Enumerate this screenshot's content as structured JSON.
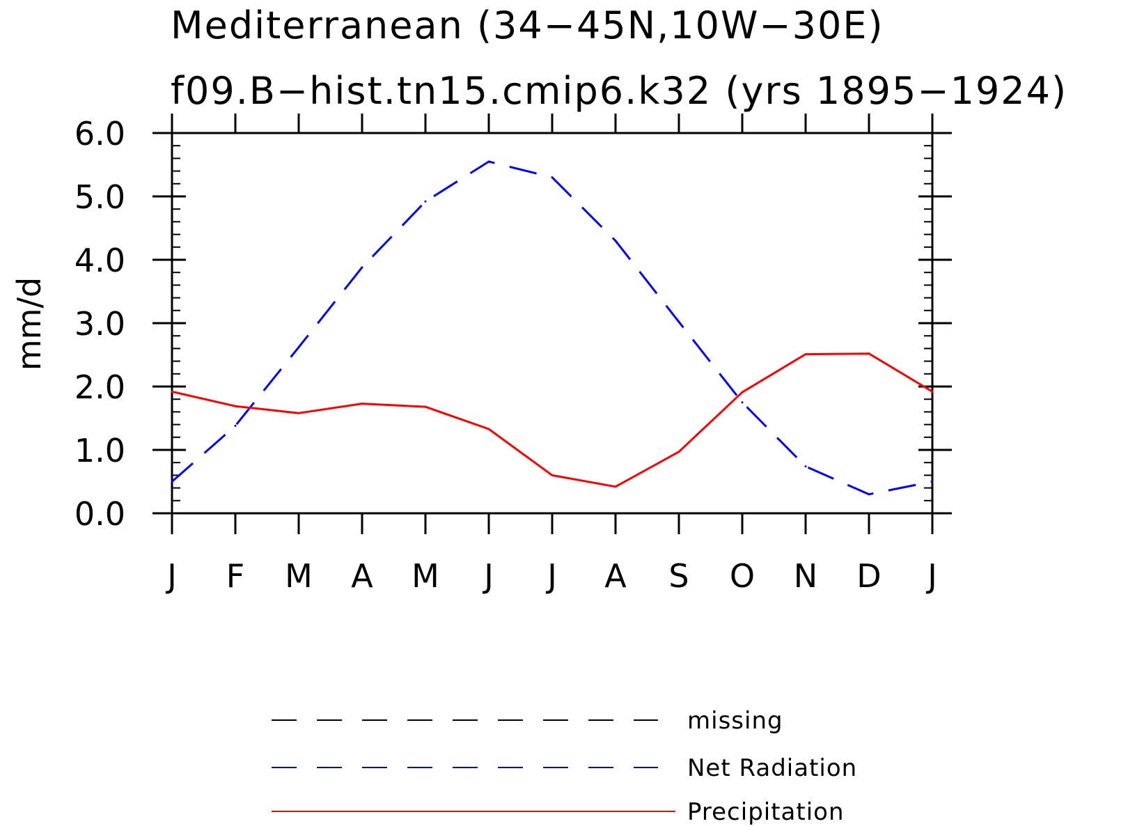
{
  "chart_data": {
    "type": "line",
    "title": "Mediterranean (34−45N,10W−30E)",
    "subtitle": "f09.B−hist.tn15.cmip6.k32 (yrs 1895−1924)",
    "xlabel": "",
    "ylabel": "mm/d",
    "ylim": [
      0,
      6
    ],
    "yticks": [
      "0.0",
      "1.0",
      "2.0",
      "3.0",
      "4.0",
      "5.0",
      "6.0"
    ],
    "categories": [
      "J",
      "F",
      "M",
      "A",
      "M",
      "J",
      "J",
      "A",
      "S",
      "O",
      "N",
      "D",
      "J"
    ],
    "grid": false,
    "legend_position": "bottom",
    "series": [
      {
        "name": "Net Radiation",
        "color": "#0000ff",
        "style": "dashed",
        "values": [
          0.5,
          1.38,
          2.62,
          3.88,
          4.92,
          5.55,
          5.3,
          4.3,
          3.02,
          1.75,
          0.74,
          0.3,
          0.5
        ]
      },
      {
        "name": "Precipitation",
        "color": "#ff0000",
        "style": "solid",
        "values": [
          1.92,
          1.69,
          1.58,
          1.73,
          1.68,
          1.33,
          0.6,
          0.42,
          0.97,
          1.91,
          2.51,
          2.52,
          1.92
        ]
      }
    ],
    "legend": [
      {
        "name": "missing",
        "color": "#000000",
        "style": "dashed"
      },
      {
        "name": "Net Radiation",
        "color": "#0000ff",
        "style": "dashed"
      },
      {
        "name": "Precipitation",
        "color": "#ff0000",
        "style": "solid"
      }
    ]
  }
}
